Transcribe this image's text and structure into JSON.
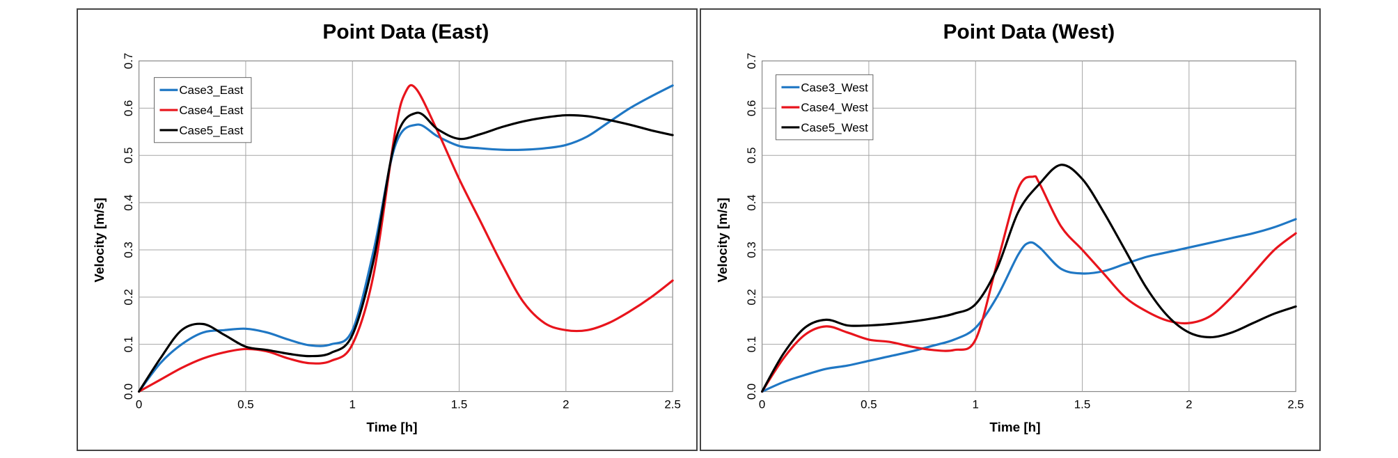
{
  "chart_data": [
    {
      "type": "line",
      "title": "Point Data (East)",
      "xlabel": "Time [h]",
      "ylabel": "Velocity [m/s]",
      "xlim": [
        0,
        2.5
      ],
      "ylim": [
        0,
        0.7
      ],
      "xticks": [
        "0",
        "0.5",
        "1",
        "1.5",
        "2",
        "2.5"
      ],
      "yticks": [
        "0.0",
        "0.1",
        "0.2",
        "0.3",
        "0.4",
        "0.5",
        "0.6",
        "0.7"
      ],
      "grid": true,
      "legend": "top-left",
      "series": [
        {
          "name": "Case3_East",
          "color": "#1f77c4",
          "x": [
            0,
            0.1,
            0.2,
            0.3,
            0.4,
            0.5,
            0.6,
            0.7,
            0.8,
            0.9,
            1.0,
            1.1,
            1.2,
            1.3,
            1.4,
            1.5,
            1.6,
            1.7,
            1.8,
            1.9,
            2.0,
            2.1,
            2.2,
            2.3,
            2.4,
            2.5
          ],
          "y": [
            0,
            0.06,
            0.1,
            0.125,
            0.13,
            0.133,
            0.125,
            0.11,
            0.098,
            0.1,
            0.13,
            0.3,
            0.52,
            0.565,
            0.54,
            0.52,
            0.515,
            0.512,
            0.512,
            0.515,
            0.522,
            0.54,
            0.57,
            0.6,
            0.625,
            0.648
          ]
        },
        {
          "name": "Case4_East",
          "color": "#e8141c",
          "x": [
            0,
            0.1,
            0.2,
            0.3,
            0.4,
            0.5,
            0.6,
            0.7,
            0.8,
            0.9,
            1.0,
            1.1,
            1.2,
            1.25,
            1.3,
            1.4,
            1.5,
            1.6,
            1.7,
            1.8,
            1.9,
            2.0,
            2.1,
            2.2,
            2.3,
            2.4,
            2.5
          ],
          "y": [
            0,
            0.025,
            0.05,
            0.07,
            0.083,
            0.09,
            0.085,
            0.07,
            0.06,
            0.065,
            0.1,
            0.25,
            0.55,
            0.635,
            0.64,
            0.55,
            0.45,
            0.36,
            0.27,
            0.19,
            0.145,
            0.13,
            0.13,
            0.145,
            0.17,
            0.2,
            0.235
          ]
        },
        {
          "name": "Case5_East",
          "color": "#000000",
          "x": [
            0,
            0.1,
            0.2,
            0.3,
            0.4,
            0.5,
            0.6,
            0.7,
            0.8,
            0.9,
            1.0,
            1.1,
            1.2,
            1.3,
            1.4,
            1.5,
            1.6,
            1.7,
            1.8,
            1.9,
            2.0,
            2.1,
            2.2,
            2.3,
            2.4,
            2.5
          ],
          "y": [
            0,
            0.07,
            0.13,
            0.143,
            0.12,
            0.095,
            0.088,
            0.08,
            0.075,
            0.082,
            0.12,
            0.28,
            0.53,
            0.59,
            0.555,
            0.535,
            0.545,
            0.56,
            0.572,
            0.58,
            0.585,
            0.583,
            0.575,
            0.565,
            0.553,
            0.543
          ]
        }
      ]
    },
    {
      "type": "line",
      "title": "Point Data (West)",
      "xlabel": "Time [h]",
      "ylabel": "Velocity [m/s]",
      "xlim": [
        0,
        2.5
      ],
      "ylim": [
        0,
        0.7
      ],
      "xticks": [
        "0",
        "0.5",
        "1",
        "1.5",
        "2",
        "2.5"
      ],
      "yticks": [
        "0.0",
        "0.1",
        "0.2",
        "0.3",
        "0.4",
        "0.5",
        "0.6",
        "0.7"
      ],
      "grid": true,
      "legend": "top-left",
      "series": [
        {
          "name": "Case3_West",
          "color": "#1f77c4",
          "x": [
            0,
            0.1,
            0.2,
            0.3,
            0.4,
            0.5,
            0.6,
            0.7,
            0.8,
            0.9,
            1.0,
            1.1,
            1.2,
            1.25,
            1.3,
            1.4,
            1.5,
            1.6,
            1.7,
            1.8,
            1.9,
            2.0,
            2.1,
            2.2,
            2.3,
            2.4,
            2.5
          ],
          "y": [
            0,
            0.02,
            0.035,
            0.048,
            0.055,
            0.065,
            0.075,
            0.085,
            0.097,
            0.11,
            0.135,
            0.2,
            0.29,
            0.315,
            0.305,
            0.26,
            0.25,
            0.255,
            0.27,
            0.285,
            0.295,
            0.305,
            0.315,
            0.325,
            0.335,
            0.348,
            0.365
          ]
        },
        {
          "name": "Case4_West",
          "color": "#e8141c",
          "x": [
            0,
            0.1,
            0.2,
            0.3,
            0.4,
            0.5,
            0.6,
            0.7,
            0.8,
            0.9,
            1.0,
            1.1,
            1.2,
            1.27,
            1.3,
            1.4,
            1.5,
            1.6,
            1.7,
            1.8,
            1.9,
            2.0,
            2.1,
            2.2,
            2.3,
            2.4,
            2.5
          ],
          "y": [
            0,
            0.07,
            0.12,
            0.138,
            0.125,
            0.11,
            0.105,
            0.095,
            0.088,
            0.088,
            0.11,
            0.27,
            0.43,
            0.455,
            0.44,
            0.35,
            0.3,
            0.25,
            0.2,
            0.17,
            0.15,
            0.145,
            0.16,
            0.2,
            0.25,
            0.3,
            0.335
          ]
        },
        {
          "name": "Case5_West",
          "color": "#000000",
          "x": [
            0,
            0.1,
            0.2,
            0.3,
            0.4,
            0.5,
            0.6,
            0.7,
            0.8,
            0.9,
            1.0,
            1.1,
            1.2,
            1.3,
            1.4,
            1.5,
            1.6,
            1.7,
            1.8,
            1.9,
            2.0,
            2.1,
            2.2,
            2.3,
            2.4,
            2.5
          ],
          "y": [
            0,
            0.08,
            0.135,
            0.152,
            0.14,
            0.14,
            0.143,
            0.148,
            0.155,
            0.165,
            0.185,
            0.26,
            0.38,
            0.44,
            0.48,
            0.45,
            0.38,
            0.3,
            0.22,
            0.16,
            0.125,
            0.115,
            0.125,
            0.145,
            0.165,
            0.18
          ]
        }
      ]
    }
  ]
}
